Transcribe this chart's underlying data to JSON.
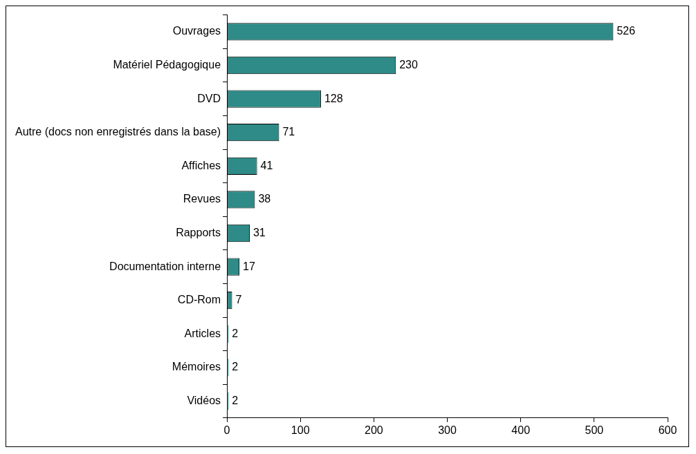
{
  "chart_data": {
    "type": "bar",
    "orientation": "horizontal",
    "categories": [
      "Ouvrages",
      "Matériel Pédagogique",
      "DVD",
      "Autre (docs non enregistrés dans la base)",
      "Affiches",
      "Revues",
      "Rapports",
      "Documentation interne",
      "CD-Rom",
      "Articles",
      "Mémoires",
      "Vidéos"
    ],
    "values": [
      526,
      230,
      128,
      71,
      41,
      38,
      31,
      17,
      7,
      2,
      2,
      2
    ],
    "color": "#2e8b87",
    "xlim": [
      0,
      600
    ],
    "xticks": [
      0,
      100,
      200,
      300,
      400,
      500,
      600
    ],
    "grid": false,
    "legend": false,
    "data_labels": true
  }
}
